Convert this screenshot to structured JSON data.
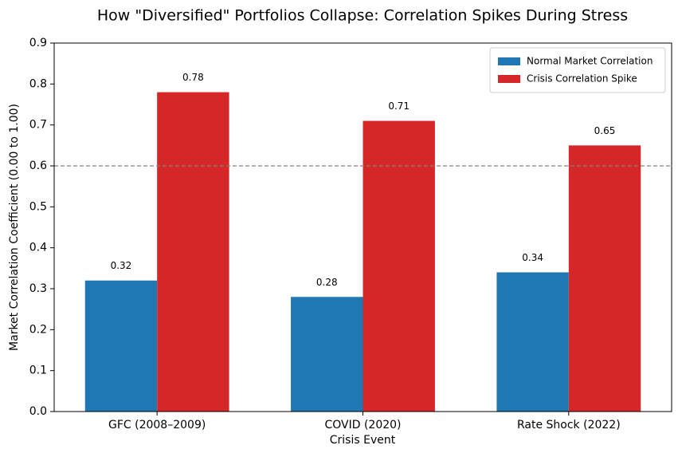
{
  "chart_data": {
    "type": "grouped_bar",
    "title": "How \"Diversified\" Portfolios Collapse: Correlation Spikes During Stress",
    "x_label": "Crisis Event",
    "y_label": "Market Correlation Coefficient (0.00 to 1.00)",
    "categories": [
      "GFC (2008–2009)",
      "COVID (2020)",
      "Rate Shock (2022)"
    ],
    "series": [
      {
        "name": "Normal Market Correlation",
        "color": "#1f77b4",
        "values": [
          0.32,
          0.28,
          0.34
        ]
      },
      {
        "name": "Crisis Correlation Spike",
        "color": "#d62728",
        "values": [
          0.78,
          0.71,
          0.65
        ]
      }
    ],
    "ylim": [
      0,
      0.9
    ],
    "yticks": [
      {
        "value": 0,
        "label": "0.0"
      },
      0.1,
      0.2,
      0.3,
      0.4,
      0.5,
      0.6,
      0.7,
      0.8,
      0.9
    ],
    "reference_line": {
      "value": 0.6,
      "color": "#808080"
    },
    "legend": "upper right"
  }
}
